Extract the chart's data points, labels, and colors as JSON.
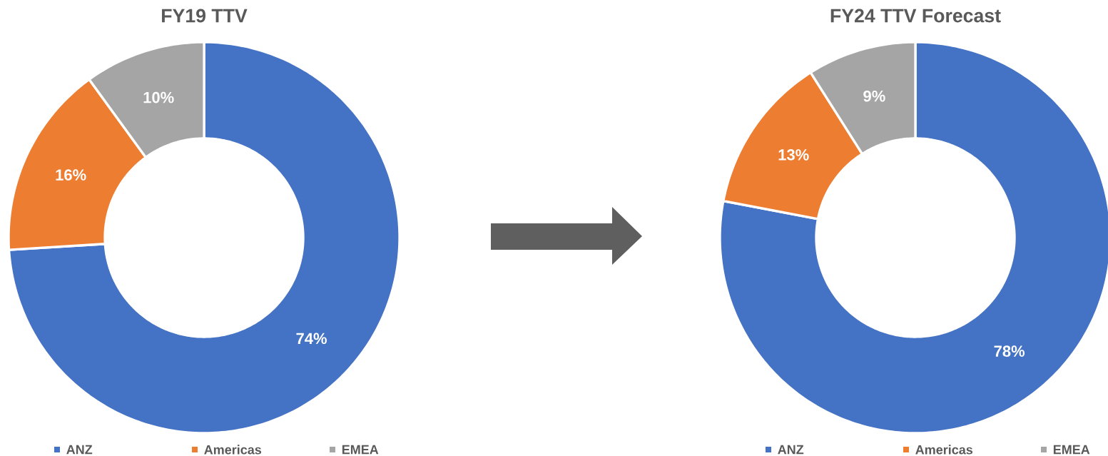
{
  "chart_data": [
    {
      "type": "donut",
      "title": "FY19 TTV",
      "categories": [
        "ANZ",
        "Americas",
        "EMEA"
      ],
      "values": [
        74,
        16,
        10
      ],
      "value_labels": [
        "74%",
        "16%",
        "10%"
      ],
      "colors": [
        "#4472c4",
        "#ed7d31",
        "#a5a5a5"
      ],
      "legend": "bottom"
    },
    {
      "type": "donut",
      "title": "FY24 TTV Forecast",
      "categories": [
        "ANZ",
        "Americas",
        "EMEA"
      ],
      "values": [
        78,
        13,
        9
      ],
      "value_labels": [
        "78%",
        "13%",
        "9%"
      ],
      "colors": [
        "#4472c4",
        "#ed7d31",
        "#a5a5a5"
      ],
      "legend": "bottom"
    }
  ]
}
